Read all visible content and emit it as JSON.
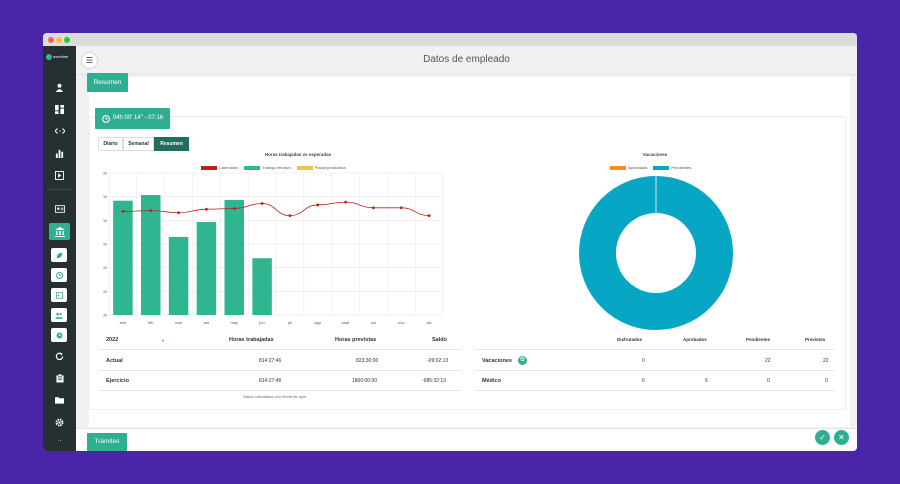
{
  "window": {
    "title_dots": [
      "#ff5f57",
      "#febc2e",
      "#28c840"
    ]
  },
  "sidebar": {
    "logo_text": "overtime",
    "items": [
      {
        "icon": "user-icon"
      },
      {
        "icon": "dashboard-icon"
      },
      {
        "icon": "code-icon"
      },
      {
        "icon": "bar-chart-icon"
      },
      {
        "icon": "play-icon"
      },
      {
        "icon": "id-card-icon"
      },
      {
        "icon": "bank-icon"
      },
      {
        "icon": "leaf-icon"
      },
      {
        "icon": "clock-icon"
      },
      {
        "icon": "id-badge-icon"
      },
      {
        "icon": "users-icon"
      },
      {
        "icon": "history-icon"
      },
      {
        "icon": "reload-icon"
      },
      {
        "icon": "clipboard-icon"
      },
      {
        "icon": "folder-icon"
      },
      {
        "icon": "gear-icon"
      },
      {
        "icon": "more-icon"
      }
    ]
  },
  "header": {
    "title": "Datos de empleado"
  },
  "tabs": {
    "resumen": "Resumen",
    "tramites": "Trámites"
  },
  "timer": {
    "label": "04h 00' 14\" - 07:16"
  },
  "segments": {
    "diario": "Diario",
    "semanal": "Semanal",
    "resumen": "Resumen"
  },
  "chart_data": [
    {
      "type": "bar",
      "title": "Horas trabajadas vs esperadas",
      "categories": [
        "ene",
        "feb",
        "mar",
        "abr",
        "may",
        "jun",
        "jul",
        "ago",
        "sept",
        "oct",
        "nov",
        "dic"
      ],
      "y_ticks": [
        "00:00:00",
        "33:20:00",
        "66:40:00",
        "100:00:00",
        "133:20:00",
        "166:40:00",
        "200:00:00"
      ],
      "ylim": [
        0,
        200
      ],
      "series": [
        {
          "name": "Calendario",
          "type": "line",
          "color": "#b5231c",
          "values": [
            146,
            147,
            144,
            149,
            150,
            157,
            140,
            155,
            159,
            151,
            151,
            140
          ]
        },
        {
          "name": "Trabajo efectivo",
          "type": "bar",
          "color": "#2fb58f",
          "values": [
            161,
            169,
            110,
            131,
            162,
            80,
            0,
            0,
            0,
            0,
            0,
            0
          ]
        },
        {
          "name": "Pausa productiva",
          "type": "bar",
          "color": "#f5c04e",
          "values": [
            0,
            0,
            0,
            0,
            0,
            0,
            0,
            0,
            0,
            0,
            0,
            0
          ]
        }
      ],
      "grid": true,
      "legend": "top"
    },
    {
      "type": "pie",
      "title": "Vacaciones",
      "labels": [
        "Aprobadas",
        "Pendientes"
      ],
      "colors": [
        "#f0921e",
        "#06a6c4"
      ],
      "values": [
        0,
        22
      ],
      "legend": "top"
    }
  ],
  "hours_table": {
    "year": "2022",
    "headers": [
      "Horas trabajadas",
      "Horas previstas",
      "Saldo"
    ],
    "rows": [
      {
        "label": "Actual",
        "values": [
          "814:27:46",
          "823:30:00",
          "-09:02:13"
        ]
      },
      {
        "label": "Ejercicio",
        "values": [
          "814:27:46",
          "1800:00:00",
          "-985:32:13"
        ]
      }
    ],
    "footnote": "Datos calculados con fecha de ayer"
  },
  "vacation_table": {
    "headers": [
      "Disfrutados",
      "Aprobados",
      "Pendientes",
      "Previstos"
    ],
    "rows": [
      {
        "label": "Vacaciones",
        "values": [
          "0",
          "",
          "22",
          "22"
        ]
      },
      {
        "label": "Médico",
        "values": [
          "6",
          "6",
          "0",
          "0"
        ]
      }
    ]
  }
}
